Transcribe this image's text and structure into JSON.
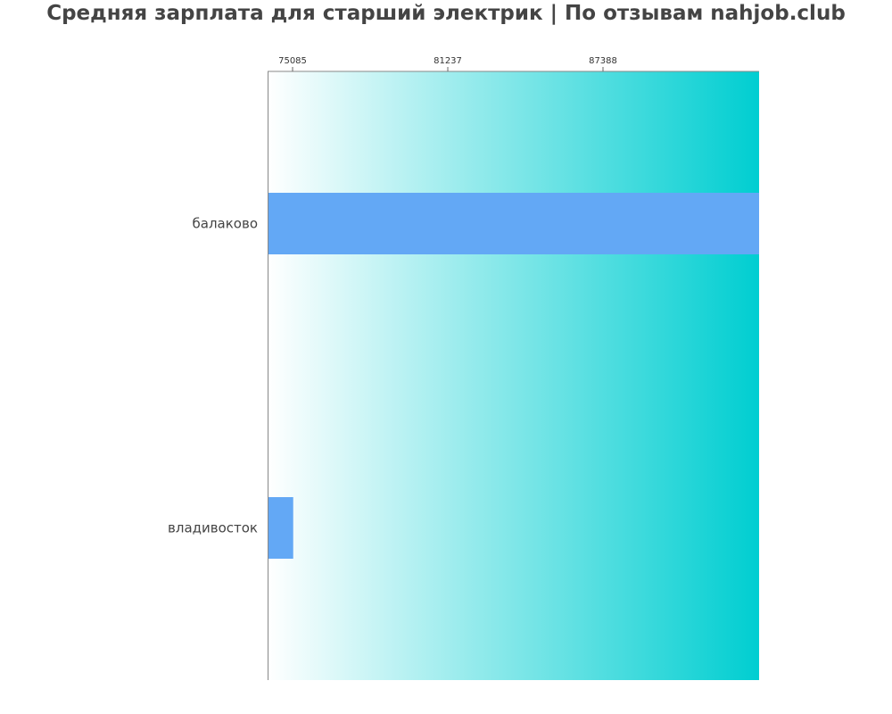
{
  "chart_data": {
    "type": "bar",
    "orientation": "horizontal",
    "title": "Средняя зарплата для старший электрик | По отзывам nahjob.club",
    "categories": [
      "балаково",
      "владивосток"
    ],
    "values": [
      93575,
      75110
    ],
    "xlim": [
      74095,
      93575
    ],
    "xticks": [
      75085,
      81237,
      87388
    ],
    "xtick_position": "top",
    "grid": false,
    "bar_color": "#63a8f5",
    "background_gradient": [
      "#ffffff",
      "#00ced1"
    ]
  }
}
